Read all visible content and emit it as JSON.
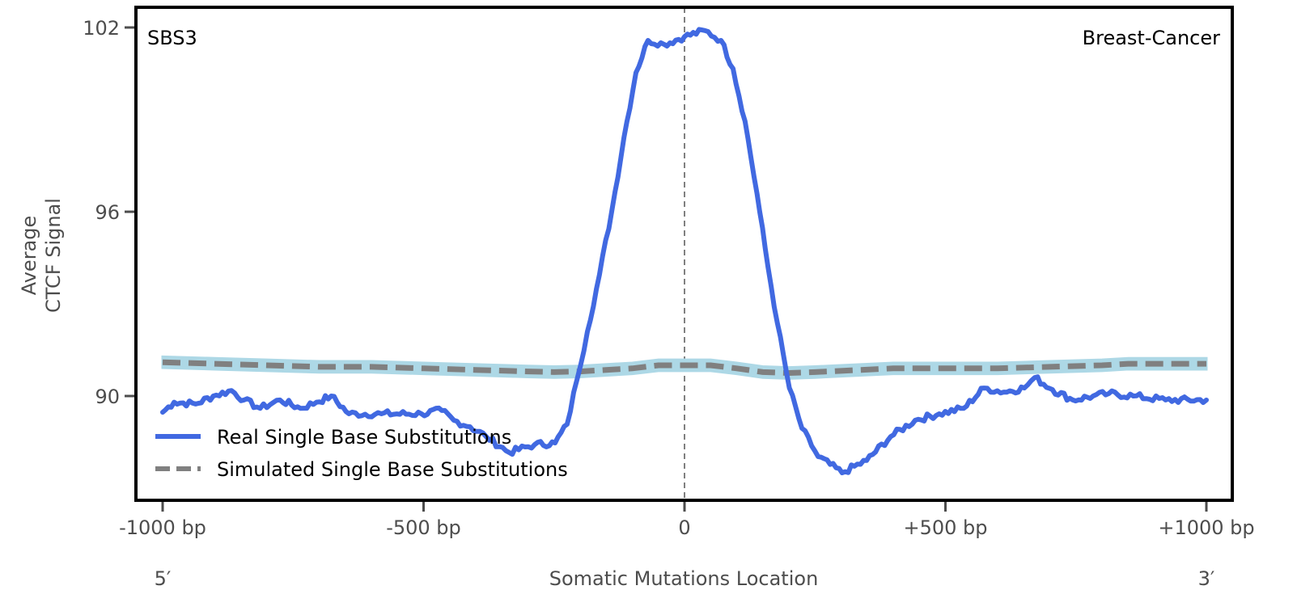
{
  "chart_data": {
    "type": "line",
    "title": "",
    "annotations": {
      "top_left": "SBS3",
      "top_right": "Breast-Cancer",
      "bottom_left": "5′",
      "bottom_right": "3′"
    },
    "xlabel": "Somatic Mutations Location",
    "ylabel_lines": [
      "Average",
      "CTCF Signal"
    ],
    "xlim": [
      -1050,
      1050
    ],
    "ylim": [
      86.6,
      102.66
    ],
    "x_ticks": [
      {
        "value": -1000,
        "label": "-1000 bp"
      },
      {
        "value": -500,
        "label": "-500 bp"
      },
      {
        "value": 0,
        "label": "0"
      },
      {
        "value": 500,
        "label": "+500 bp"
      },
      {
        "value": 1000,
        "label": "+1000 bp"
      }
    ],
    "y_ticks": [
      {
        "value": 90,
        "label": "90"
      },
      {
        "value": 96,
        "label": "96"
      },
      {
        "value": 102,
        "label": "102"
      }
    ],
    "vertical_reference_line": {
      "x": 0,
      "style": "dashed",
      "color": "#808080"
    },
    "grid": false,
    "legend": {
      "placement": "bottom-left",
      "entries": [
        {
          "label": "Real Single Base Substitutions",
          "style": "solid",
          "color": "#4169e1"
        },
        {
          "label": "Simulated Single Base Substitutions",
          "style": "dashed",
          "color": "#808080"
        }
      ]
    },
    "series": [
      {
        "name": "Real Single Base Substitutions",
        "color": "#4169e1",
        "style": "solid",
        "x": [
          -1000,
          -978,
          -937,
          -903,
          -868,
          -844,
          -813,
          -775,
          -736,
          -705,
          -677,
          -643,
          -581,
          -504,
          -465,
          -442,
          -411,
          -380,
          -336,
          -287,
          -248,
          -225,
          -206,
          -186,
          -163,
          -139,
          -116,
          -93,
          -70,
          -39,
          0,
          39,
          70,
          93,
          116,
          139,
          160,
          178,
          201,
          225,
          256,
          302,
          349,
          395,
          442,
          488,
          535,
          574,
          612,
          651,
          671,
          705,
          744,
          783,
          813,
          860,
          922,
          1000
        ],
        "y": [
          89.47,
          89.8,
          89.74,
          90.0,
          90.18,
          89.87,
          89.6,
          89.87,
          89.6,
          89.8,
          90.0,
          89.42,
          89.42,
          89.42,
          89.53,
          89.21,
          89.0,
          88.68,
          88.16,
          88.42,
          88.47,
          89.08,
          90.53,
          92.1,
          93.95,
          96.05,
          98.42,
          100.53,
          101.58,
          101.45,
          101.7,
          101.9,
          101.58,
          100.66,
          98.95,
          96.58,
          94.2,
          92.37,
          90.26,
          88.95,
          88.03,
          87.5,
          87.9,
          88.68,
          89.21,
          89.42,
          89.6,
          90.26,
          90.13,
          90.26,
          90.6,
          90.21,
          89.87,
          90.0,
          90.08,
          90.0,
          89.87,
          89.87
        ]
      },
      {
        "name": "Simulated Single Base Substitutions",
        "color": "#808080",
        "band_color": "#add8e6",
        "style": "dashed",
        "x": [
          -1000,
          -900,
          -800,
          -700,
          -600,
          -500,
          -400,
          -300,
          -250,
          -200,
          -100,
          -50,
          0,
          50,
          100,
          150,
          200,
          250,
          300,
          400,
          500,
          600,
          700,
          800,
          850,
          900,
          1000
        ],
        "y": [
          91.1,
          91.05,
          91.0,
          90.95,
          90.95,
          90.9,
          90.85,
          90.8,
          90.78,
          90.8,
          90.9,
          91.0,
          91.0,
          91.0,
          90.9,
          90.78,
          90.75,
          90.78,
          90.82,
          90.9,
          90.9,
          90.9,
          90.95,
          91.0,
          91.05,
          91.05,
          91.05
        ],
        "band_half_width": 0.18
      }
    ]
  }
}
